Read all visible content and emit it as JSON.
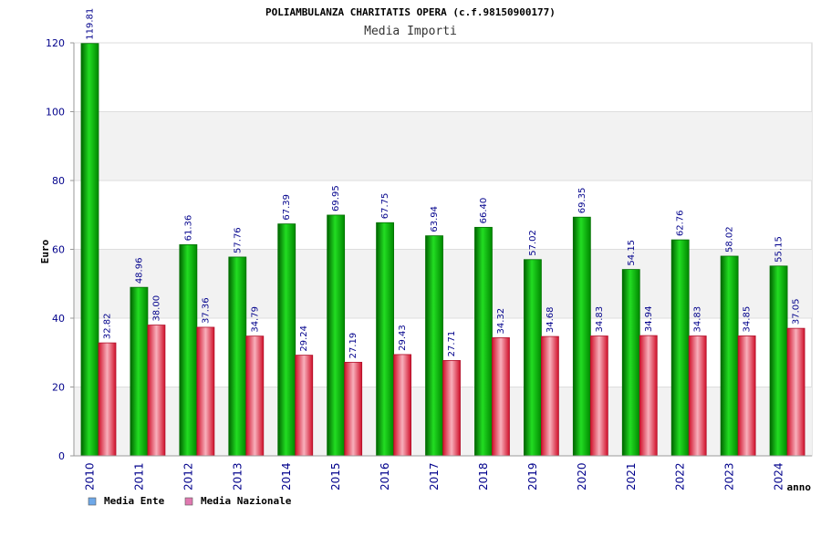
{
  "chart_data": {
    "type": "bar",
    "title": "POLIAMBULANZA CHARITATIS OPERA (c.f.98150900177)",
    "subtitle": "Media Importi",
    "xlabel": "anno",
    "ylabel": "Euro",
    "ylim": [
      0,
      120
    ],
    "yticks": [
      0,
      20,
      40,
      60,
      80,
      100,
      120
    ],
    "grid": true,
    "legend_position": "bottom-left",
    "categories": [
      "2010",
      "2011",
      "2012",
      "2013",
      "2014",
      "2015",
      "2016",
      "2017",
      "2018",
      "2019",
      "2020",
      "2021",
      "2022",
      "2023",
      "2024"
    ],
    "series": [
      {
        "name": "Media Ente",
        "color": "#00a000",
        "legend_color": "#6ea8e8",
        "values": [
          119.81,
          48.96,
          61.36,
          57.76,
          67.39,
          69.95,
          67.75,
          63.94,
          66.4,
          57.02,
          69.35,
          54.15,
          62.76,
          58.02,
          55.15
        ],
        "labels": [
          "119.81",
          "48.96",
          "61.36",
          "57.76",
          "67.39",
          "69.95",
          "67.75",
          "63.94",
          "66.40",
          "57.02",
          "69.35",
          "54.15",
          "62.76",
          "58.02",
          "55.15"
        ]
      },
      {
        "name": "Media Nazionale",
        "color": "#e0223a",
        "legend_color": "#e078b0",
        "values": [
          32.82,
          38.0,
          37.36,
          34.79,
          29.24,
          27.19,
          29.43,
          27.71,
          34.32,
          34.68,
          34.83,
          34.94,
          34.83,
          34.85,
          37.05
        ],
        "labels": [
          "32.82",
          "38.00",
          "37.36",
          "34.79",
          "29.24",
          "27.19",
          "29.43",
          "27.71",
          "34.32",
          "34.68",
          "34.83",
          "34.94",
          "34.83",
          "34.85",
          "37.05"
        ]
      }
    ]
  }
}
